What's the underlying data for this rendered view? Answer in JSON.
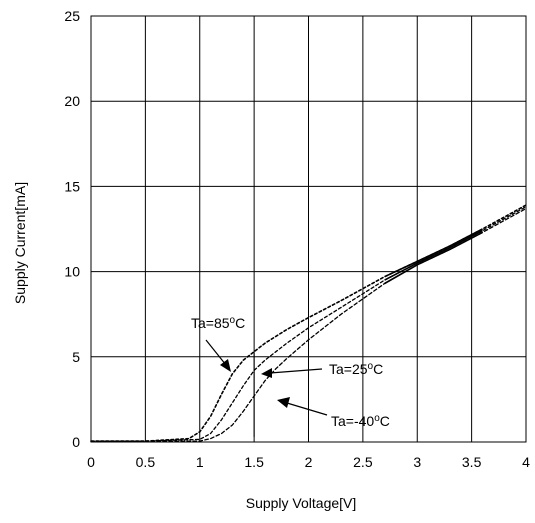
{
  "chart_data": {
    "type": "line",
    "title": "",
    "xlabel": "Supply Voltage[V]",
    "ylabel": "Supply Current[mA]",
    "xlim": [
      0,
      4
    ],
    "ylim": [
      0,
      25
    ],
    "xticks": [
      "0",
      "0.5",
      "1",
      "1.5",
      "2",
      "2.5",
      "3",
      "3.5",
      "4"
    ],
    "yticks": [
      "0",
      "5",
      "10",
      "15",
      "20",
      "25"
    ],
    "grid": true,
    "series": [
      {
        "name": "Ta=85°C",
        "annotation_prefix": "Ta=85",
        "annotation_sup": "o",
        "annotation_suffix": "C",
        "x": [
          0,
          0.5,
          0.9,
          1.0,
          1.1,
          1.2,
          1.3,
          1.4,
          1.5,
          1.6,
          1.8,
          2.0,
          2.3,
          2.7,
          3.0,
          3.3,
          3.6,
          4.0
        ],
        "y": [
          0.05,
          0.05,
          0.2,
          0.6,
          1.5,
          2.8,
          4.0,
          4.8,
          5.3,
          5.8,
          6.6,
          7.3,
          8.3,
          9.7,
          10.6,
          11.5,
          12.5,
          13.9
        ]
      },
      {
        "name": "Ta=25°C",
        "annotation_prefix": "Ta=25",
        "annotation_sup": "o",
        "annotation_suffix": "C",
        "x": [
          0,
          0.5,
          1.0,
          1.1,
          1.2,
          1.3,
          1.4,
          1.5,
          1.6,
          1.7,
          1.8,
          2.0,
          2.3,
          2.7,
          3.0,
          3.3,
          3.6,
          4.0
        ],
        "y": [
          0.05,
          0.05,
          0.15,
          0.5,
          1.3,
          2.3,
          3.3,
          4.2,
          4.8,
          5.3,
          5.8,
          6.7,
          7.9,
          9.5,
          10.5,
          11.4,
          12.4,
          13.8
        ]
      },
      {
        "name": "Ta=-40°C",
        "annotation_prefix": "Ta=-40",
        "annotation_sup": "o",
        "annotation_suffix": "C",
        "x": [
          0,
          0.5,
          1.0,
          1.1,
          1.2,
          1.3,
          1.4,
          1.5,
          1.6,
          1.7,
          1.8,
          2.0,
          2.3,
          2.7,
          3.0,
          3.3,
          3.6,
          4.0
        ],
        "y": [
          0.05,
          0.05,
          0.05,
          0.2,
          0.5,
          1.0,
          1.8,
          2.7,
          3.6,
          4.3,
          4.9,
          6.0,
          7.5,
          9.3,
          10.4,
          11.3,
          12.3,
          13.7
        ]
      }
    ],
    "solid_segment_x": [
      2.7,
      3.6
    ]
  }
}
